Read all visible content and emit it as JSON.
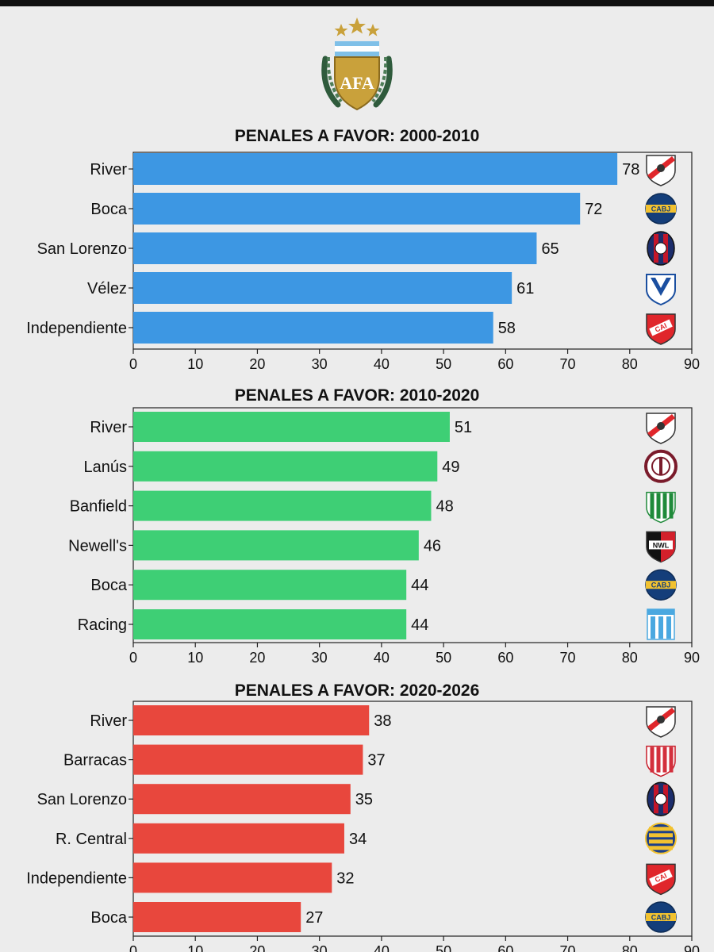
{
  "colors": {
    "background": "#ececec",
    "axis": "#222222"
  },
  "logo": {
    "text": "AFA",
    "icon": "afa-crest-icon"
  },
  "chart_data": [
    {
      "type": "bar",
      "orientation": "horizontal",
      "title": "PENALES A FAVOR: 2000-2010",
      "categories": [
        "River",
        "Boca",
        "San Lorenzo",
        "Vélez",
        "Independiente"
      ],
      "values": [
        78,
        72,
        65,
        61,
        58
      ],
      "xlim": [
        0,
        90
      ],
      "xticks": [
        0,
        10,
        20,
        30,
        40,
        50,
        60,
        70,
        80,
        90
      ],
      "color": "#3d97e3",
      "crests": [
        "river",
        "boca",
        "san-lorenzo",
        "velez",
        "independiente"
      ],
      "grid": false
    },
    {
      "type": "bar",
      "orientation": "horizontal",
      "title": "PENALES A FAVOR: 2010-2020",
      "categories": [
        "River",
        "Lanús",
        "Banfield",
        "Newell's",
        "Boca",
        "Racing"
      ],
      "values": [
        51,
        49,
        48,
        46,
        44,
        44
      ],
      "xlim": [
        0,
        90
      ],
      "xticks": [
        0,
        10,
        20,
        30,
        40,
        50,
        60,
        70,
        80,
        90
      ],
      "color": "#3ecf75",
      "crests": [
        "river",
        "lanus",
        "banfield",
        "newells",
        "boca",
        "racing"
      ],
      "grid": false
    },
    {
      "type": "bar",
      "orientation": "horizontal",
      "title": "PENALES A FAVOR: 2020-2026",
      "categories": [
        "River",
        "Barracas",
        "San Lorenzo",
        "R. Central",
        "Independiente",
        "Boca"
      ],
      "values": [
        38,
        37,
        35,
        34,
        32,
        27
      ],
      "xlim": [
        0,
        90
      ],
      "xticks": [
        0,
        10,
        20,
        30,
        40,
        50,
        60,
        70,
        80,
        90
      ],
      "color": "#e8473d",
      "crests": [
        "river",
        "barracas",
        "san-lorenzo",
        "rosario-central",
        "independiente",
        "boca"
      ],
      "grid": false
    }
  ]
}
